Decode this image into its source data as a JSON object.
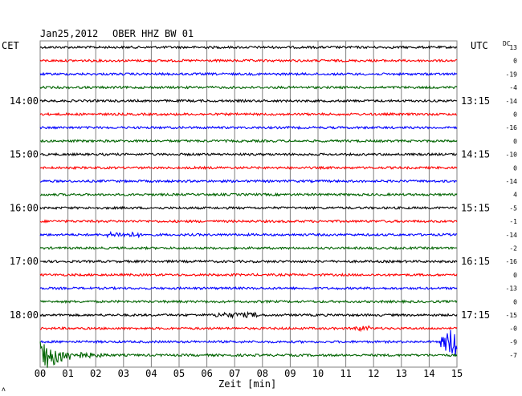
{
  "header": {
    "date": "Jan25,2012",
    "station": "OBER HHZ BW 01"
  },
  "labels": {
    "left_zone": "CET",
    "right_zone": "UTC",
    "dc_label": "DC",
    "xlabel": "Zeit [min]",
    "corner_mark": "ʌ"
  },
  "colors": {
    "black": "#000000",
    "red": "#ff0000",
    "blue": "#0000ff",
    "green": "#006400",
    "grid": "#808080"
  },
  "chart_data": {
    "type": "line",
    "title": "Jan25,2012   OBER HHZ BW 01",
    "xlabel": "Zeit [min]",
    "ylabel": "",
    "x_ticks": [
      "00",
      "01",
      "02",
      "03",
      "04",
      "05",
      "06",
      "07",
      "08",
      "09",
      "10",
      "11",
      "12",
      "13",
      "14",
      "15"
    ],
    "xlim": [
      0,
      15
    ],
    "left_time_labels": [
      {
        "row": 4,
        "label": "14:00"
      },
      {
        "row": 8,
        "label": "15:00"
      },
      {
        "row": 12,
        "label": "16:00"
      },
      {
        "row": 16,
        "label": "17:00"
      },
      {
        "row": 20,
        "label": "18:00"
      }
    ],
    "right_time_labels": [
      {
        "row": 4,
        "label": "13:15"
      },
      {
        "row": 8,
        "label": "14:15"
      },
      {
        "row": 12,
        "label": "15:15"
      },
      {
        "row": 16,
        "label": "16:15"
      },
      {
        "row": 20,
        "label": "17:15"
      }
    ],
    "series": [
      {
        "color": "black",
        "dc": "13"
      },
      {
        "color": "red",
        "dc": "0"
      },
      {
        "color": "blue",
        "dc": "-19"
      },
      {
        "color": "green",
        "dc": "-4"
      },
      {
        "color": "black",
        "dc": "-14"
      },
      {
        "color": "red",
        "dc": "0"
      },
      {
        "color": "blue",
        "dc": "-16"
      },
      {
        "color": "green",
        "dc": "0"
      },
      {
        "color": "black",
        "dc": "-10"
      },
      {
        "color": "red",
        "dc": "0"
      },
      {
        "color": "blue",
        "dc": "-14"
      },
      {
        "color": "green",
        "dc": "4"
      },
      {
        "color": "black",
        "dc": "-5"
      },
      {
        "color": "red",
        "dc": "-1"
      },
      {
        "color": "blue",
        "dc": "-14"
      },
      {
        "color": "green",
        "dc": "-2"
      },
      {
        "color": "black",
        "dc": "-16"
      },
      {
        "color": "red",
        "dc": "0"
      },
      {
        "color": "blue",
        "dc": "-13"
      },
      {
        "color": "green",
        "dc": "0"
      },
      {
        "color": "black",
        "dc": "-15"
      },
      {
        "color": "red",
        "dc": "-0"
      },
      {
        "color": "blue",
        "dc": "-9"
      },
      {
        "color": "green",
        "dc": "-7"
      }
    ],
    "events": [
      {
        "series": 20,
        "x_start": 6.3,
        "x_end": 7.9,
        "amplitude": "small"
      },
      {
        "series": 21,
        "x_start": 11.3,
        "x_end": 11.9,
        "amplitude": "small"
      },
      {
        "series": 14,
        "x_start": 2.4,
        "x_end": 3.6,
        "amplitude": "small"
      },
      {
        "series": 22,
        "x_start": 14.4,
        "x_end": 15.0,
        "amplitude": "large"
      },
      {
        "series": 23,
        "x_start": 0.0,
        "x_end": 2.5,
        "amplitude": "large-decaying"
      }
    ]
  }
}
